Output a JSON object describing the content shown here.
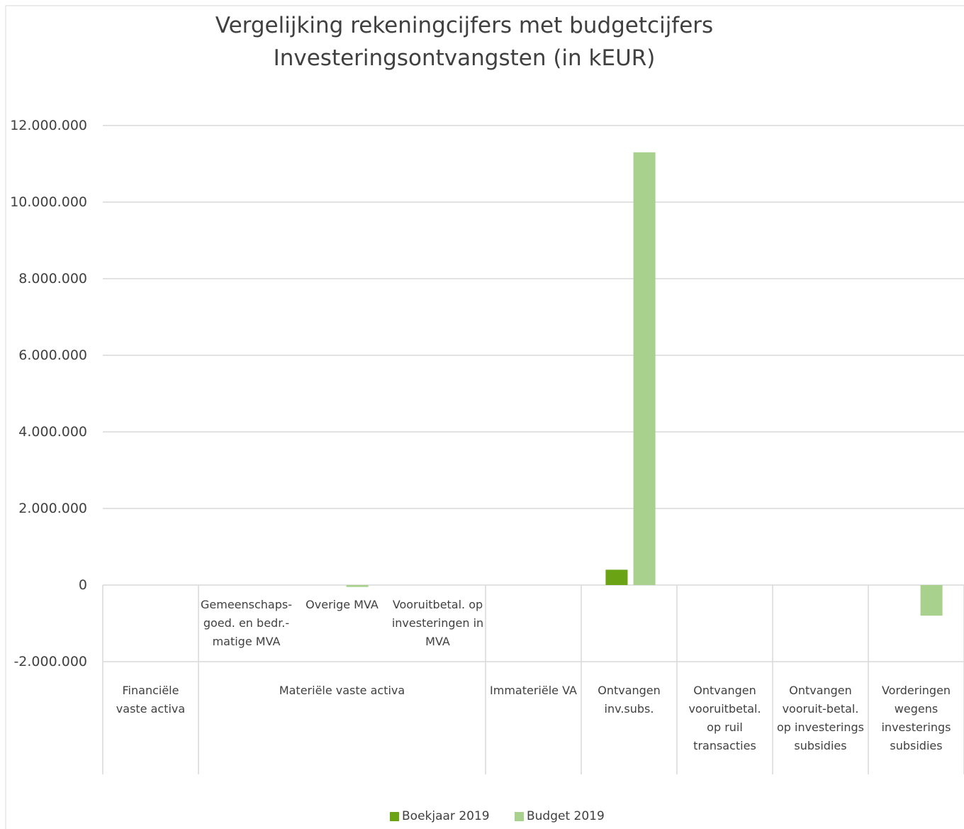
{
  "chart_data": {
    "type": "bar",
    "title": [
      "Vergelijking rekeningcijfers met budgetcijfers",
      "Investeringsontvangsten (in kEUR)"
    ],
    "groups": [
      {
        "label": "Financiële vaste activa",
        "categories": [
          null
        ]
      },
      {
        "label": "Materiële vaste activa",
        "categories": [
          "Gemeenschaps-goed. en bedr.-matige MVA",
          "Overige MVA",
          "Vooruitbetal. op investeringen in MVA"
        ]
      },
      {
        "label": "Immateriële VA",
        "categories": [
          null
        ]
      },
      {
        "label": "Ontvangen inv.subs.",
        "categories": [
          null
        ]
      },
      {
        "label": "Ontvangen vooruitbetal. op ruil transacties",
        "categories": [
          null
        ]
      },
      {
        "label": "Ontvangen vooruit-betal. op investerings subsidies",
        "categories": [
          null
        ]
      },
      {
        "label": "Vorderingen wegens investerings subsidies",
        "categories": [
          null
        ]
      }
    ],
    "series": [
      {
        "name": "Boekjaar 2019",
        "color": "#6aa414",
        "values": [
          0,
          0,
          0,
          0,
          0,
          400000,
          0,
          0,
          0
        ]
      },
      {
        "name": "Budget 2019",
        "color": "#a9d18e",
        "values": [
          0,
          0,
          -50000,
          0,
          0,
          11300000,
          0,
          0,
          -800000
        ]
      }
    ],
    "ylim": [
      -2000000,
      12000000
    ],
    "yticks": [
      {
        "value": -2000000,
        "label": "-2.000.000"
      },
      0,
      {
        "value": 2000000,
        "label": "2.000.000"
      },
      {
        "value": 4000000,
        "label": "4.000.000"
      },
      {
        "value": 6000000,
        "label": "6.000.000"
      },
      {
        "value": 8000000,
        "label": "8.000.000"
      },
      {
        "value": 10000000,
        "label": "10.000.000"
      },
      {
        "value": 12000000,
        "label": "12.000.000"
      }
    ],
    "grid": true,
    "legend": "bottom"
  }
}
